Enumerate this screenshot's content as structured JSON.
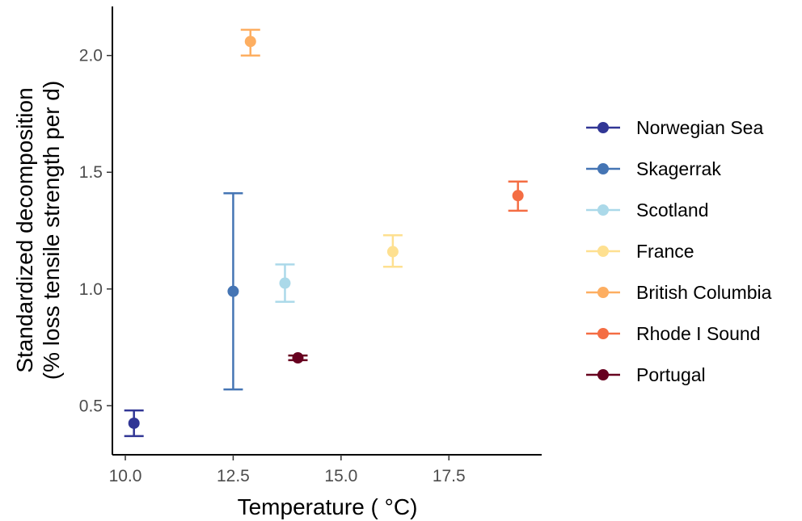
{
  "chart_data": {
    "type": "scatter",
    "xlabel": "Temperature ( °C)",
    "ylabel_lines": [
      "Standardized decomposition",
      "(% loss tensile strength per d)"
    ],
    "xlim": [
      9.7,
      19.65
    ],
    "ylim": [
      0.29,
      2.21
    ],
    "x_ticks": [
      10.0,
      12.5,
      15.0,
      17.5
    ],
    "x_tick_labels": [
      "10.0",
      "12.5",
      "15.0",
      "17.5"
    ],
    "y_ticks": [
      0.5,
      1.0,
      1.5,
      2.0
    ],
    "y_tick_labels": [
      "0.5",
      "1.0",
      "1.5",
      "2.0"
    ],
    "grid": false,
    "legend_position": "right",
    "series": [
      {
        "name": "Norwegian Sea",
        "color": "#313695",
        "x": 10.2,
        "y": 0.425,
        "ymin": 0.37,
        "ymax": 0.48
      },
      {
        "name": "Skagerrak",
        "color": "#4575b4",
        "x": 12.5,
        "y": 0.99,
        "ymin": 0.57,
        "ymax": 1.41
      },
      {
        "name": "Scotland",
        "color": "#abd9e9",
        "x": 13.7,
        "y": 1.025,
        "ymin": 0.945,
        "ymax": 1.105
      },
      {
        "name": "France",
        "color": "#fee090",
        "x": 16.2,
        "y": 1.16,
        "ymin": 1.095,
        "ymax": 1.23
      },
      {
        "name": "British Columbia",
        "color": "#fdae61",
        "x": 12.9,
        "y": 2.06,
        "ymin": 2.0,
        "ymax": 2.11
      },
      {
        "name": "Rhode I Sound",
        "color": "#f46d43",
        "x": 19.1,
        "y": 1.4,
        "ymin": 1.335,
        "ymax": 1.46
      },
      {
        "name": "Portugal",
        "color": "#67001f",
        "x": 14.0,
        "y": 0.705,
        "ymin": 0.695,
        "ymax": 0.715
      }
    ]
  }
}
